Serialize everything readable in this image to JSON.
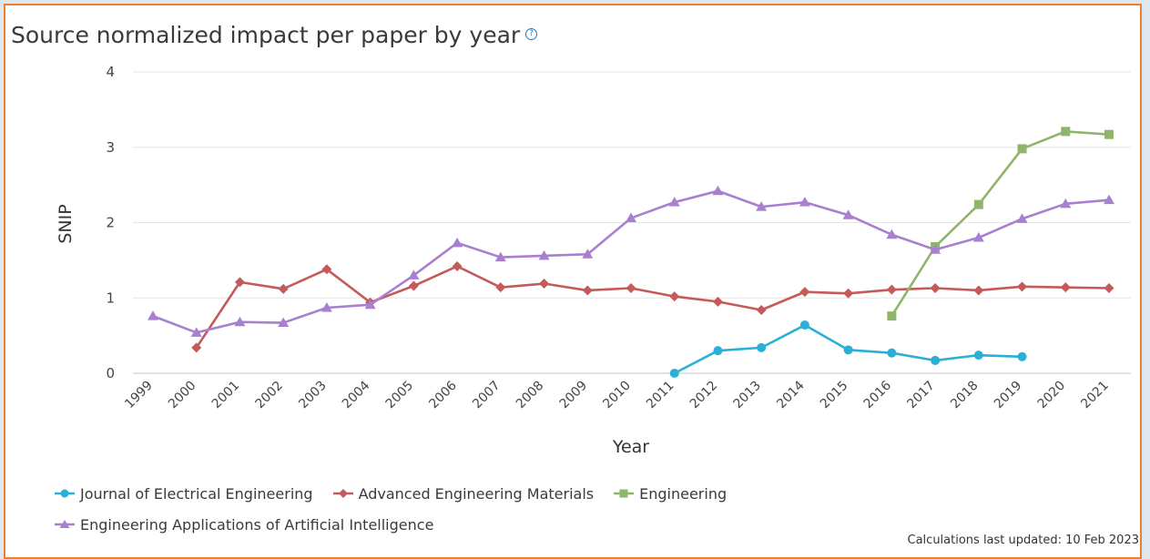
{
  "title": "Source normalized impact per paper by year",
  "help_icon": "question-circle-icon",
  "footnote": "Calculations last updated: 10 Feb 2023",
  "chart_data": {
    "type": "line",
    "xlabel": "Year",
    "ylabel": "SNIP",
    "ylim": [
      0,
      4
    ],
    "yticks": [
      0,
      1,
      2,
      3,
      4
    ],
    "grid": true,
    "legend_position": "bottom",
    "categories": [
      "1999",
      "2000",
      "2001",
      "2002",
      "2003",
      "2004",
      "2005",
      "2006",
      "2007",
      "2008",
      "2009",
      "2010",
      "2011",
      "2012",
      "2013",
      "2014",
      "2015",
      "2016",
      "2017",
      "2018",
      "2019",
      "2020",
      "2021"
    ],
    "series": [
      {
        "name": "Journal of Electrical Engineering",
        "color": "#2ab0d6",
        "marker": "circle",
        "values": [
          null,
          null,
          null,
          null,
          null,
          null,
          null,
          null,
          null,
          null,
          null,
          null,
          0.0,
          0.3,
          0.34,
          0.64,
          0.31,
          0.27,
          0.17,
          0.24,
          0.22,
          null,
          null
        ]
      },
      {
        "name": "Advanced Engineering Materials",
        "color": "#c45a5a",
        "marker": "diamond",
        "values": [
          null,
          0.34,
          1.21,
          1.12,
          1.38,
          0.94,
          1.16,
          1.42,
          1.14,
          1.19,
          1.1,
          1.13,
          1.02,
          0.95,
          0.84,
          1.08,
          1.06,
          1.11,
          1.13,
          1.1,
          1.15,
          1.14,
          1.13
        ]
      },
      {
        "name": "Engineering",
        "color": "#8fb56a",
        "marker": "square",
        "values": [
          null,
          null,
          null,
          null,
          null,
          null,
          null,
          null,
          null,
          null,
          null,
          null,
          null,
          null,
          null,
          null,
          null,
          0.76,
          1.68,
          2.24,
          2.98,
          3.21,
          3.17
        ]
      },
      {
        "name": "Engineering Applications of Artificial Intelligence",
        "color": "#a97fcf",
        "marker": "triangle",
        "values": [
          0.76,
          0.54,
          0.68,
          0.67,
          0.87,
          0.91,
          1.3,
          1.73,
          1.54,
          1.56,
          1.58,
          2.06,
          2.27,
          2.42,
          2.21,
          2.27,
          2.1,
          1.84,
          1.64,
          1.8,
          2.05,
          2.25,
          2.3
        ]
      }
    ]
  }
}
